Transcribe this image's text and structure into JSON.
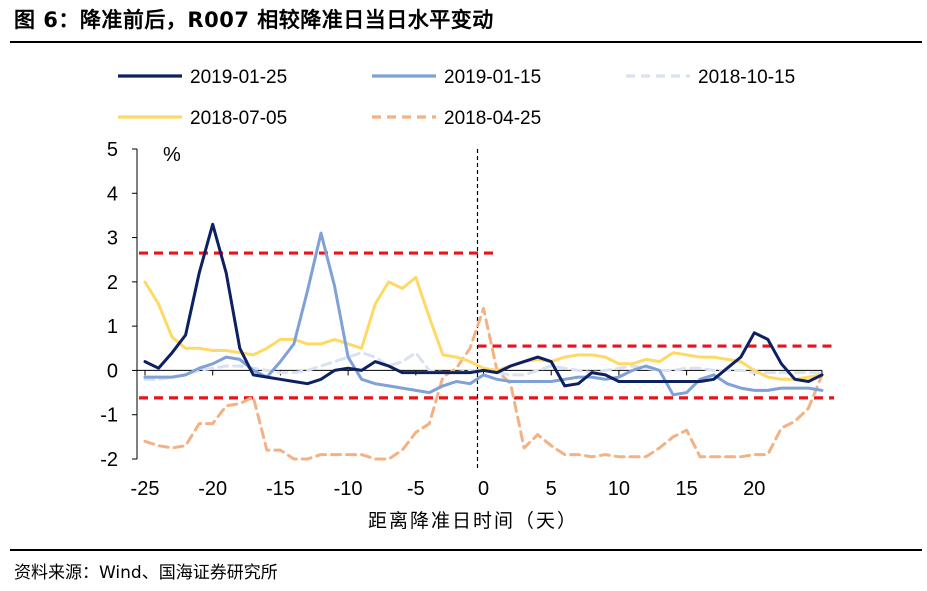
{
  "figure": {
    "title": "图 6：降准前后，R007 相较降准日当日水平变动",
    "source": "资料来源：Wind、国海证券研究所"
  },
  "chart_data": {
    "type": "line",
    "title": "",
    "xlabel": "距离降准日时间（天）",
    "ylabel": "%",
    "xlim": [
      -25,
      25
    ],
    "ylim": [
      -2,
      5
    ],
    "x_ticks": [
      -25,
      -20,
      -15,
      -10,
      -5,
      0,
      5,
      10,
      15,
      20
    ],
    "y_ticks": [
      -2,
      -1,
      0,
      1,
      2,
      3,
      4,
      5
    ],
    "legend_position": "top",
    "event_marker": {
      "x": 0,
      "style": "dashed vertical line"
    },
    "reference_lines": [
      {
        "y": 2.65,
        "x_range": [
          -25,
          0
        ],
        "color": "#E8141B",
        "style": "dashed"
      },
      {
        "y": 0.55,
        "x_range": [
          0,
          25
        ],
        "color": "#E8141B",
        "style": "dashed"
      },
      {
        "y": -0.62,
        "x_range": [
          -25,
          25
        ],
        "color": "#E8141B",
        "style": "dashed"
      }
    ],
    "x": [
      -25,
      -24,
      -23,
      -22,
      -21,
      -20,
      -19,
      -18,
      -17,
      -16,
      -15,
      -14,
      -13,
      -12,
      -11,
      -10,
      -9,
      -8,
      -7,
      -6,
      -5,
      -4,
      -3,
      -2,
      -1,
      0,
      1,
      2,
      3,
      4,
      5,
      6,
      7,
      8,
      9,
      10,
      11,
      12,
      13,
      14,
      15,
      16,
      17,
      18,
      19,
      20,
      21,
      22,
      23,
      24,
      25
    ],
    "series": [
      {
        "name": "2019-01-25",
        "color": "#0D2060",
        "dash": "solid",
        "width": 3,
        "values": [
          0.2,
          0.05,
          0.4,
          0.8,
          2.2,
          3.3,
          2.2,
          0.5,
          -0.1,
          -0.15,
          -0.2,
          -0.25,
          -0.3,
          -0.2,
          0.0,
          0.05,
          0.0,
          0.2,
          0.1,
          -0.05,
          -0.05,
          -0.05,
          -0.05,
          -0.05,
          -0.05,
          0.0,
          -0.05,
          0.1,
          0.2,
          0.3,
          0.2,
          -0.35,
          -0.3,
          -0.05,
          -0.1,
          -0.25,
          -0.25,
          -0.25,
          -0.25,
          -0.25,
          -0.25,
          -0.25,
          -0.2,
          0.05,
          0.3,
          0.85,
          0.7,
          0.15,
          -0.2,
          -0.25,
          -0.1
        ]
      },
      {
        "name": "2019-01-15",
        "color": "#7FA1D6",
        "dash": "solid",
        "width": 3,
        "values": [
          -0.15,
          -0.15,
          -0.15,
          -0.1,
          0.05,
          0.15,
          0.3,
          0.25,
          0.0,
          -0.15,
          0.2,
          0.6,
          1.8,
          3.1,
          1.9,
          0.3,
          -0.2,
          -0.3,
          -0.35,
          -0.4,
          -0.45,
          -0.5,
          -0.35,
          -0.25,
          -0.3,
          -0.1,
          -0.2,
          -0.25,
          -0.25,
          -0.25,
          -0.25,
          -0.2,
          -0.15,
          -0.15,
          -0.2,
          -0.15,
          0.0,
          0.1,
          0.0,
          -0.55,
          -0.5,
          -0.2,
          -0.1,
          -0.3,
          -0.4,
          -0.45,
          -0.45,
          -0.4,
          -0.4,
          -0.4,
          -0.45
        ]
      },
      {
        "name": "2018-10-15",
        "color": "#D9E1F2",
        "dash": "dashed",
        "width": 3,
        "values": [
          -0.2,
          -0.2,
          -0.15,
          -0.1,
          0.0,
          0.05,
          0.1,
          0.1,
          0.05,
          0.0,
          -0.05,
          -0.05,
          0.0,
          0.1,
          0.2,
          0.3,
          0.4,
          0.3,
          0.1,
          0.2,
          0.4,
          0.0,
          -0.05,
          -0.05,
          0.0,
          0.0,
          -0.05,
          -0.1,
          -0.1,
          0.0,
          0.1,
          0.05,
          0.0,
          -0.05,
          0.0,
          0.05,
          0.1,
          0.05,
          0.0,
          0.0,
          0.05,
          0.05,
          0.0,
          0.0,
          0.0,
          -0.05,
          -0.05,
          -0.05,
          -0.05,
          -0.05,
          -0.05
        ]
      },
      {
        "name": "2018-07-05",
        "color": "#FFD966",
        "dash": "solid",
        "width": 3,
        "values": [
          2.0,
          1.5,
          0.75,
          0.5,
          0.5,
          0.45,
          0.45,
          0.4,
          0.35,
          0.5,
          0.7,
          0.7,
          0.6,
          0.6,
          0.7,
          0.6,
          0.5,
          1.5,
          2.0,
          1.85,
          2.1,
          1.2,
          0.35,
          0.3,
          0.2,
          0.05,
          0.0,
          0.1,
          0.2,
          0.25,
          0.2,
          0.3,
          0.35,
          0.35,
          0.3,
          0.15,
          0.15,
          0.25,
          0.2,
          0.4,
          0.35,
          0.3,
          0.3,
          0.25,
          0.2,
          0.0,
          -0.15,
          -0.2,
          -0.2,
          -0.15,
          -0.1
        ]
      },
      {
        "name": "2018-04-25",
        "color": "#F4B183",
        "dash": "dashed",
        "width": 3,
        "values": [
          -1.6,
          -1.7,
          -1.75,
          -1.7,
          -1.2,
          -1.2,
          -0.8,
          -0.75,
          -0.6,
          -1.8,
          -1.8,
          -2.0,
          -2.0,
          -1.9,
          -1.9,
          -1.9,
          -1.9,
          -2.0,
          -2.0,
          -1.8,
          -1.4,
          -1.2,
          -0.15,
          0.05,
          0.5,
          1.4,
          0.0,
          -0.3,
          -1.75,
          -1.45,
          -1.7,
          -1.9,
          -1.9,
          -1.95,
          -1.9,
          -1.95,
          -1.95,
          -1.95,
          -1.75,
          -1.5,
          -1.35,
          -1.95,
          -1.95,
          -1.95,
          -1.95,
          -1.9,
          -1.9,
          -1.3,
          -1.15,
          -0.85,
          -0.1
        ]
      }
    ]
  }
}
